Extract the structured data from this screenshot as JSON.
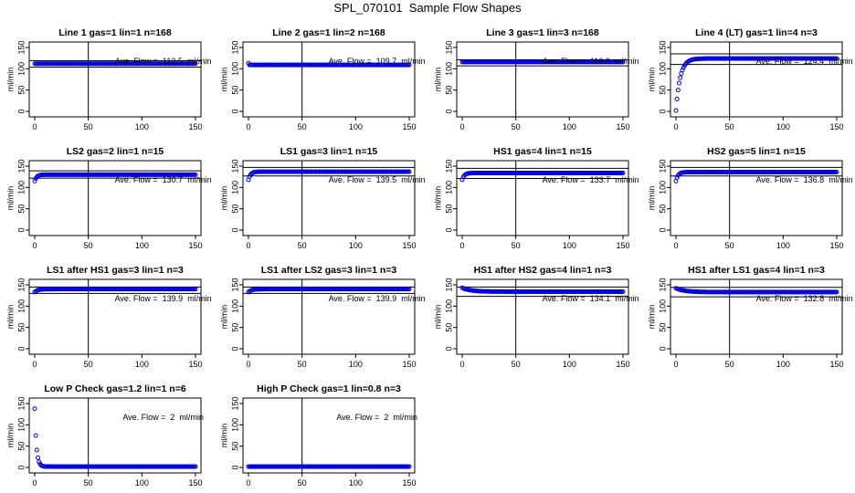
{
  "figure": {
    "title": "SPL_070101  Sample Flow Shapes"
  },
  "chart_data": [
    {
      "type": "scatter",
      "title": "Line 1 gas=1 lin=1 n=168",
      "ylabel": "ml/min",
      "xlim": [
        0,
        150
      ],
      "ylim": [
        0,
        150
      ],
      "xticks": [
        "0",
        "50",
        "100",
        "150"
      ],
      "yticks": [
        "0",
        "50",
        "100",
        "150"
      ],
      "vline_x": 50,
      "hlines": [
        104,
        119
      ],
      "annotation": "Ave. Flow =  113.5  ml/min",
      "shape": {
        "kind": "flat",
        "v": 112
      }
    },
    {
      "type": "scatter",
      "title": "Line 2 gas=1 lin=2 n=168",
      "ylabel": "ml/min",
      "xlim": [
        0,
        150
      ],
      "ylim": [
        0,
        150
      ],
      "xticks": [
        "0",
        "50",
        "100",
        "150"
      ],
      "yticks": [
        "0",
        "50",
        "100",
        "150"
      ],
      "vline_x": 50,
      "hlines": [],
      "annotation": "Ave. Flow =  109.7  ml/min",
      "shape": {
        "kind": "flat",
        "v": 109,
        "x0v": 113
      }
    },
    {
      "type": "scatter",
      "title": "Line 3 gas=1 lin=3 n=168",
      "ylabel": "ml/min",
      "xlim": [
        0,
        150
      ],
      "ylim": [
        0,
        150
      ],
      "xticks": [
        "0",
        "50",
        "100",
        "150"
      ],
      "yticks": [
        "0",
        "50",
        "100",
        "150"
      ],
      "vline_x": 50,
      "hlines": [
        107,
        121
      ],
      "annotation": "Ave. Flow =  116.3  ml/min",
      "shape": {
        "kind": "flat",
        "v": 116
      }
    },
    {
      "type": "scatter",
      "title": "Line 4 (LT) gas=1 lin=4 n=3",
      "ylabel": "ml/min",
      "xlim": [
        0,
        150
      ],
      "ylim": [
        0,
        150
      ],
      "xticks": [
        "0",
        "50",
        "100",
        "150"
      ],
      "yticks": [
        "0",
        "50",
        "100",
        "150"
      ],
      "vline_x": 50,
      "hlines": [
        110,
        135
      ],
      "annotation": "Ave. Flow =  124.4  ml/min",
      "shape": {
        "kind": "rise",
        "start": 2,
        "end": 124,
        "k": 4
      }
    },
    {
      "type": "scatter",
      "title": "LS2 gas=2 lin=1 n=15",
      "ylabel": "ml/min",
      "xlim": [
        0,
        150
      ],
      "ylim": [
        0,
        150
      ],
      "xticks": [
        "0",
        "50",
        "100",
        "150"
      ],
      "yticks": [
        "0",
        "50",
        "100",
        "150"
      ],
      "vline_x": 50,
      "hlines": [
        122,
        139
      ],
      "annotation": "Ave. Flow =  130.7  ml/min",
      "shape": {
        "kind": "rise",
        "start": 115,
        "end": 130,
        "k": 2
      }
    },
    {
      "type": "scatter",
      "title": "LS1 gas=3 lin=1 n=15",
      "ylabel": "ml/min",
      "xlim": [
        0,
        150
      ],
      "ylim": [
        0,
        150
      ],
      "xticks": [
        "0",
        "50",
        "100",
        "150"
      ],
      "yticks": [
        "0",
        "50",
        "100",
        "150"
      ],
      "vline_x": 50,
      "hlines": [
        127,
        147
      ],
      "annotation": "Ave. Flow =  139.5  ml/min",
      "shape": {
        "kind": "rise",
        "start": 118,
        "end": 137,
        "k": 2
      }
    },
    {
      "type": "scatter",
      "title": "HS1 gas=4 lin=1 n=15",
      "ylabel": "ml/min",
      "xlim": [
        0,
        150
      ],
      "ylim": [
        0,
        150
      ],
      "xticks": [
        "0",
        "50",
        "100",
        "150"
      ],
      "yticks": [
        "0",
        "50",
        "100",
        "150"
      ],
      "vline_x": 50,
      "hlines": [
        121,
        145
      ],
      "annotation": "Ave. Flow =  133.7  ml/min",
      "shape": {
        "kind": "rise",
        "start": 118,
        "end": 134,
        "k": 2
      }
    },
    {
      "type": "scatter",
      "title": "HS2 gas=5 lin=1 n=15",
      "ylabel": "ml/min",
      "xlim": [
        0,
        150
      ],
      "ylim": [
        0,
        150
      ],
      "xticks": [
        "0",
        "50",
        "100",
        "150"
      ],
      "yticks": [
        "0",
        "50",
        "100",
        "150"
      ],
      "vline_x": 50,
      "hlines": [
        127,
        147
      ],
      "annotation": "Ave. Flow =  136.8  ml/min",
      "shape": {
        "kind": "rise",
        "start": 115,
        "end": 136,
        "k": 2
      }
    },
    {
      "type": "scatter",
      "title": "LS1 after HS1 gas=3 lin=1 n=3",
      "ylabel": "ml/min",
      "xlim": [
        0,
        150
      ],
      "ylim": [
        0,
        150
      ],
      "xticks": [
        "0",
        "50",
        "100",
        "150"
      ],
      "yticks": [
        "0",
        "50",
        "100",
        "150"
      ],
      "vline_x": 50,
      "hlines": [
        130,
        145
      ],
      "annotation": "Ave. Flow =  139.9  ml/min",
      "shape": {
        "kind": "rise",
        "start": 133,
        "end": 140,
        "k": 3
      }
    },
    {
      "type": "scatter",
      "title": "LS1 after LS2 gas=3 lin=1 n=3",
      "ylabel": "ml/min",
      "xlim": [
        0,
        150
      ],
      "ylim": [
        0,
        150
      ],
      "xticks": [
        "0",
        "50",
        "100",
        "150"
      ],
      "yticks": [
        "0",
        "50",
        "100",
        "150"
      ],
      "vline_x": 50,
      "hlines": [
        130,
        145
      ],
      "annotation": "Ave. Flow =  139.9  ml/min",
      "shape": {
        "kind": "rise",
        "start": 133,
        "end": 140,
        "k": 3
      }
    },
    {
      "type": "scatter",
      "title": "HS1 after HS2 gas=4 lin=1 n=3",
      "ylabel": "ml/min",
      "xlim": [
        0,
        150
      ],
      "ylim": [
        0,
        150
      ],
      "xticks": [
        "0",
        "50",
        "100",
        "150"
      ],
      "yticks": [
        "0",
        "50",
        "100",
        "150"
      ],
      "vline_x": 50,
      "hlines": [
        123,
        145
      ],
      "annotation": "Ave. Flow =  134.1  ml/min",
      "shape": {
        "kind": "decay",
        "start": 143,
        "end": 134,
        "k": 8
      }
    },
    {
      "type": "scatter",
      "title": "HS1 after LS1 gas=4 lin=1 n=3",
      "ylabel": "ml/min",
      "xlim": [
        0,
        150
      ],
      "ylim": [
        0,
        150
      ],
      "xticks": [
        "0",
        "50",
        "100",
        "150"
      ],
      "yticks": [
        "0",
        "50",
        "100",
        "150"
      ],
      "vline_x": 50,
      "hlines": [
        122,
        144
      ],
      "annotation": "Ave. Flow =  132.8  ml/min",
      "shape": {
        "kind": "decay",
        "start": 142,
        "end": 133,
        "k": 8
      }
    },
    {
      "type": "scatter",
      "title": "Low P Check gas=1.2 lin=1 n=6",
      "ylabel": "ml/min",
      "xlim": [
        0,
        150
      ],
      "ylim": [
        0,
        150
      ],
      "xticks": [
        "0",
        "50",
        "100",
        "150"
      ],
      "yticks": [
        "0",
        "50",
        "100",
        "150"
      ],
      "vline_x": 50,
      "hlines": [],
      "annotation": "Ave. Flow =  2  ml/min",
      "shape": {
        "kind": "decay",
        "start": 138,
        "end": 2,
        "k": 1.6
      }
    },
    {
      "type": "scatter",
      "title": "High P Check gas=1 lin=0.8 n=3",
      "ylabel": "ml/min",
      "xlim": [
        0,
        150
      ],
      "ylim": [
        0,
        150
      ],
      "xticks": [
        "0",
        "50",
        "100",
        "150"
      ],
      "yticks": [
        "0",
        "50",
        "100",
        "150"
      ],
      "vline_x": 50,
      "hlines": [],
      "annotation": "Ave. Flow =  2  ml/min",
      "shape": {
        "kind": "flat",
        "v": 2
      }
    }
  ],
  "colors": {
    "points": "#0000ee",
    "axis": "#000000"
  }
}
